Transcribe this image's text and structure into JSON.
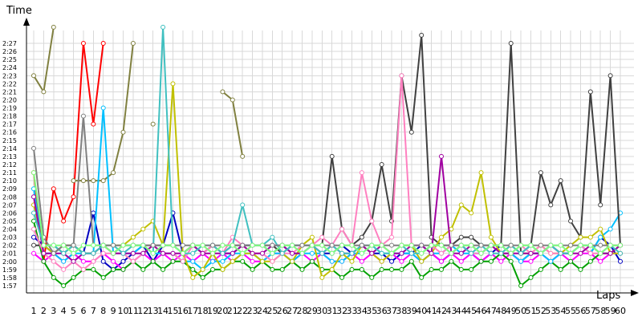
{
  "chart_data": {
    "type": "line",
    "title": "",
    "xlabel": "Laps",
    "ylabel": "Time",
    "x": [
      1,
      2,
      3,
      4,
      5,
      6,
      7,
      8,
      9,
      10,
      11,
      12,
      13,
      14,
      15,
      16,
      17,
      18,
      19,
      20,
      21,
      22,
      23,
      24,
      25,
      26,
      27,
      28,
      29,
      30,
      31,
      32,
      33,
      34,
      35,
      36,
      37,
      38,
      39,
      40,
      41,
      42,
      43,
      44,
      45,
      46,
      47,
      48,
      49,
      50,
      51,
      52,
      53,
      54,
      55,
      56,
      57,
      58,
      59,
      60
    ],
    "x_tick_labels": [
      "1",
      "2",
      "3",
      "4",
      "5",
      "6",
      "7",
      "8",
      "9",
      "10",
      "11",
      "12",
      "13",
      "14",
      "15",
      "16",
      "17",
      "18",
      "19",
      "20",
      "21",
      "22",
      "23",
      "24",
      "25",
      "26",
      "27",
      "28",
      "29",
      "30",
      "31",
      "32",
      "33",
      "34",
      "35",
      "36",
      "37",
      "38",
      "39",
      "40",
      "41",
      "42",
      "43",
      "44",
      "45",
      "46",
      "47",
      "48",
      "49",
      "50",
      "51",
      "52",
      "53",
      "54",
      "55",
      "56",
      "57",
      "58",
      "59",
      "60"
    ],
    "y_tick_labels": [
      "1:57",
      "1:58",
      "1:59",
      "2:00",
      "2:01",
      "2:02",
      "2:03",
      "2:04",
      "2:05",
      "2:06",
      "2:07",
      "2:08",
      "2:09",
      "2:10",
      "2:11",
      "2:12",
      "2:13",
      "2:14",
      "2:15",
      "2:16",
      "2:17",
      "2:18",
      "2:19",
      "2:20",
      "2:21",
      "2:22",
      "2:23",
      "2:24",
      "2:25",
      "2:26",
      "2:27"
    ],
    "y_unit": "seconds",
    "ylim": [
      116,
      149
    ],
    "grid": true,
    "legend": "none",
    "series": [
      {
        "color": "#ff0000",
        "values": [
          131,
          120,
          129,
          125,
          128,
          147,
          137,
          147,
          null,
          null,
          null,
          null,
          null,
          null,
          null,
          null,
          null,
          null,
          null,
          null,
          null,
          null,
          null,
          null,
          null,
          null,
          null,
          null,
          null,
          null,
          null,
          null,
          null,
          null,
          null,
          null,
          null,
          null,
          null,
          null,
          null,
          null,
          null,
          null,
          null,
          null,
          null,
          null,
          null,
          null,
          null,
          null,
          null,
          null,
          null,
          null,
          null,
          null,
          null,
          null
        ]
      },
      {
        "color": "#808040",
        "values": [
          143,
          141,
          149,
          null,
          130,
          130,
          130,
          130,
          131,
          136,
          147,
          null,
          137,
          null,
          null,
          null,
          null,
          null,
          null,
          141,
          140,
          133,
          null,
          null,
          null,
          null,
          null,
          null,
          null,
          null,
          null,
          null,
          null,
          null,
          null,
          null,
          null,
          null,
          null,
          null,
          null,
          null,
          null,
          null,
          null,
          null,
          null,
          null,
          null,
          null,
          null,
          null,
          null,
          null,
          null,
          null,
          null,
          null,
          null,
          null
        ]
      },
      {
        "color": "#0000c0",
        "values": [
          123,
          122,
          121,
          122,
          122,
          121,
          126,
          120,
          119,
          120,
          121,
          122,
          120,
          122,
          126,
          121,
          122,
          121,
          122,
          121,
          121,
          122,
          122,
          122,
          121,
          122,
          121,
          121,
          122,
          121,
          121,
          122,
          121,
          122,
          121,
          121,
          120,
          121,
          121,
          122,
          121,
          120,
          121,
          122,
          121,
          120,
          121,
          122,
          121,
          120,
          121,
          121,
          122,
          121,
          121,
          122,
          121,
          123,
          122,
          120
        ]
      },
      {
        "color": "#ff00ff",
        "values": [
          121,
          120,
          121,
          120,
          121,
          120,
          120,
          121,
          120,
          119,
          120,
          121,
          120,
          121,
          120,
          121,
          120,
          121,
          120,
          121,
          120,
          121,
          120,
          120,
          121,
          121,
          120,
          121,
          120,
          121,
          120,
          120,
          121,
          120,
          121,
          120,
          121,
          120,
          121,
          120,
          121,
          120,
          121,
          120,
          121,
          120,
          121,
          120,
          121,
          120,
          120,
          121,
          120,
          121,
          120,
          121,
          121,
          120,
          121,
          121
        ]
      },
      {
        "color": "#00a000",
        "values": [
          125,
          120,
          118,
          117,
          118,
          119,
          119,
          118,
          119,
          119,
          120,
          119,
          120,
          119,
          120,
          120,
          119,
          118,
          119,
          119,
          120,
          120,
          119,
          120,
          119,
          119,
          120,
          119,
          120,
          119,
          119,
          118,
          119,
          119,
          118,
          119,
          119,
          119,
          120,
          118,
          119,
          119,
          120,
          119,
          119,
          120,
          120,
          121,
          120,
          117,
          118,
          119,
          120,
          119,
          120,
          119,
          120,
          121,
          121,
          122
        ]
      },
      {
        "color": "#00c0ff",
        "values": [
          129,
          121,
          121,
          120,
          121,
          121,
          121,
          139,
          121,
          121,
          121,
          122,
          121,
          121,
          121,
          120,
          120,
          119,
          120,
          120,
          121,
          121,
          121,
          120,
          121,
          121,
          120,
          121,
          121,
          121,
          120,
          120,
          121,
          121,
          122,
          121,
          121,
          121,
          121,
          120,
          121,
          121,
          122,
          121,
          121,
          121,
          122,
          121,
          121,
          120,
          121,
          121,
          120,
          121,
          121,
          122,
          121,
          123,
          124,
          126
        ]
      },
      {
        "color": "#404040",
        "values": [
          122,
          122,
          122,
          121,
          122,
          121,
          121,
          122,
          121,
          122,
          122,
          122,
          122,
          122,
          122,
          121,
          122,
          121,
          122,
          121,
          122,
          122,
          122,
          122,
          122,
          121,
          122,
          122,
          122,
          122,
          133,
          124,
          122,
          123,
          125,
          132,
          125,
          143,
          136,
          148,
          123,
          122,
          122,
          123,
          123,
          122,
          122,
          122,
          147,
          121,
          122,
          131,
          127,
          130,
          125,
          123,
          141,
          127,
          143,
          122
        ]
      },
      {
        "color": "#c0c000",
        "values": [
          127,
          122,
          121,
          122,
          122,
          121,
          121,
          122,
          122,
          122,
          123,
          124,
          125,
          122,
          142,
          121,
          118,
          119,
          121,
          119,
          120,
          121,
          121,
          120,
          120,
          121,
          120,
          122,
          123,
          118,
          119,
          121,
          120,
          122,
          121,
          120,
          121,
          122,
          122,
          120,
          121,
          123,
          124,
          127,
          126,
          131,
          123,
          121,
          122,
          121,
          121,
          122,
          121,
          121,
          122,
          123,
          123,
          124,
          121,
          121
        ]
      },
      {
        "color": "#ff80c0",
        "values": [
          124,
          121,
          120,
          119,
          120,
          119,
          120,
          121,
          121,
          121,
          120,
          121,
          122,
          121,
          121,
          120,
          122,
          121,
          122,
          121,
          123,
          122,
          121,
          121,
          120,
          121,
          121,
          122,
          122,
          123,
          122,
          124,
          122,
          131,
          125,
          122,
          123,
          143,
          122,
          121,
          122,
          121,
          122,
          122,
          121,
          121,
          122,
          121,
          121,
          122,
          121,
          122,
          121,
          121,
          121,
          122,
          121,
          121,
          122,
          122
        ]
      },
      {
        "color": "#a000a0",
        "values": [
          128,
          121,
          121,
          121,
          120,
          121,
          121,
          122,
          121,
          121,
          121,
          121,
          122,
          121,
          121,
          121,
          122,
          121,
          121,
          121,
          121,
          122,
          121,
          121,
          122,
          122,
          121,
          121,
          122,
          121,
          122,
          121,
          121,
          122,
          121,
          122,
          121,
          121,
          122,
          122,
          121,
          133,
          121,
          121,
          122,
          121,
          122,
          121,
          121,
          121,
          121,
          121,
          122,
          121,
          121,
          121,
          122,
          121,
          121,
          122
        ]
      },
      {
        "color": "#40c0c0",
        "values": [
          126,
          122,
          122,
          121,
          122,
          121,
          121,
          122,
          122,
          121,
          122,
          122,
          121,
          149,
          122,
          121,
          121,
          122,
          122,
          121,
          122,
          127,
          122,
          122,
          123,
          121,
          122,
          122,
          122,
          121,
          122,
          121,
          121,
          122,
          122,
          121,
          121,
          122,
          121,
          121,
          122,
          122,
          121,
          122,
          121,
          122,
          121,
          121,
          122,
          121,
          122,
          121,
          122,
          121,
          121,
          122,
          122,
          121,
          122,
          121
        ]
      },
      {
        "color": "#808080",
        "values": [
          134,
          123,
          121,
          122,
          122,
          138,
          122,
          122,
          122,
          122,
          122,
          122,
          122,
          122,
          122,
          122,
          122,
          122,
          122,
          122,
          122,
          122,
          122,
          122,
          122,
          122,
          122,
          122,
          122,
          122,
          122,
          122,
          122,
          122,
          122,
          122,
          122,
          122,
          122,
          122,
          122,
          122,
          122,
          122,
          122,
          122,
          122,
          122,
          122,
          122,
          122,
          122,
          122,
          122,
          122,
          122,
          122,
          122,
          122,
          122
        ]
      },
      {
        "color": "#80ff80",
        "values": [
          131,
          122,
          122,
          122,
          121,
          122,
          122,
          122,
          121,
          122,
          122,
          122,
          121,
          122,
          122,
          121,
          122,
          122,
          121,
          122,
          122,
          121,
          122,
          122,
          121,
          122,
          122,
          121,
          122,
          122,
          121,
          122,
          122,
          121,
          122,
          122,
          121,
          122,
          122,
          121,
          122,
          122,
          121,
          122,
          122,
          121,
          122,
          122,
          121,
          122,
          122,
          121,
          122,
          122,
          121,
          122,
          122,
          121,
          122,
          122
        ]
      }
    ]
  }
}
